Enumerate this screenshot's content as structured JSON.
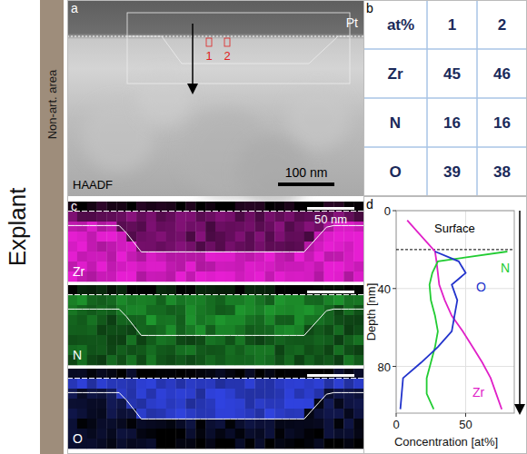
{
  "side_label": "Explant",
  "area_label": "Non-art. area",
  "panel_a": {
    "letter": "a",
    "label": "HAADF",
    "coating": "Pt",
    "scale_bar": "100 nm",
    "markers": [
      "1",
      "2"
    ]
  },
  "panel_b": {
    "letter": "b",
    "table": {
      "header": [
        "at%",
        "1",
        "2"
      ],
      "rows": [
        [
          "Zr",
          45,
          46
        ],
        [
          "N",
          16,
          16
        ],
        [
          "O",
          39,
          38
        ]
      ]
    }
  },
  "panel_c": {
    "letter": "c",
    "maps": [
      "Zr",
      "N",
      "O"
    ],
    "scale_bar": "50 nm"
  },
  "panel_d": {
    "letter": "d"
  },
  "chart_data": {
    "type": "line",
    "x_label": "Concentration [at%]",
    "y_label": "Depth [nm]",
    "annotation": "Surface",
    "surface_depth": 20,
    "y": [
      5,
      21,
      26,
      32,
      38,
      46,
      54,
      62,
      70,
      78,
      86,
      94,
      102
    ],
    "xlim": [
      0,
      85
    ],
    "ylim": [
      0,
      104
    ],
    "xticks": [
      0,
      50
    ],
    "yticks": [
      0,
      40,
      80
    ],
    "grid": true,
    "series": [
      {
        "name": "Zr",
        "color": "#e020c8",
        "values": [
          8,
          28,
          29,
          30,
          31,
          35,
          40,
          48,
          55,
          62,
          68,
          72,
          76
        ]
      },
      {
        "name": "N",
        "color": "#22cc33",
        "values": [
          null,
          80,
          30,
          26,
          24,
          25,
          28,
          30,
          28,
          25,
          22,
          22,
          27
        ]
      },
      {
        "name": "O",
        "color": "#2233cc",
        "values": [
          null,
          28,
          45,
          50,
          40,
          44,
          42,
          40,
          30,
          18,
          5,
          4,
          3
        ]
      }
    ]
  }
}
